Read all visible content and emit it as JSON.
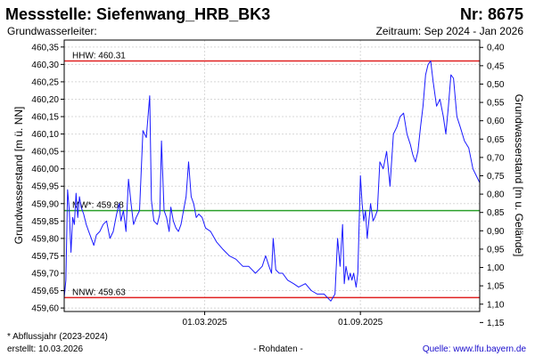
{
  "header": {
    "title": "Messstelle: Siefenwang_HRB_BK3",
    "number": "Nr: 8675",
    "aquifer": "Grundwasserleiter:",
    "period": "Zeitraum: Sep 2024 - Jan 2026"
  },
  "footer": {
    "note": "* Abflussjahr (2023-2024)",
    "created": "erstellt:  10.03.2026",
    "rawdata": "- Rohdaten -",
    "source": "Quelle: www.lfu.bayern.de"
  },
  "colors": {
    "series": "#1a1aff",
    "hhw": "#e02020",
    "nnw": "#e02020",
    "mw": "#2ca02c",
    "grid": "#d8d8d8",
    "source_link": "#1a0dcc"
  },
  "chart_data": {
    "type": "line",
    "title": "",
    "xlabel": "",
    "ylabel": "Grundwasserstand [m ü. NN]",
    "ylabel_right": "Grundwasserstand [m u. Gelände]",
    "xlim": [
      "2024-09-16",
      "2026-01-20"
    ],
    "ylim": [
      459.59,
      460.37
    ],
    "ylim_right": [
      1.12,
      0.38
    ],
    "x_ticks": [
      {
        "date": "2025-03-01",
        "label": "01.03.2025"
      },
      {
        "date": "2025-09-01",
        "label": "01.09.2025"
      }
    ],
    "y_ticks": [
      "460,35",
      "460,30",
      "460,25",
      "460,20",
      "460,15",
      "460,10",
      "460,05",
      "460,00",
      "459,95",
      "459,90",
      "459,85",
      "459,80",
      "459,75",
      "459,70",
      "459,65",
      "459,60"
    ],
    "y_tick_values": [
      460.35,
      460.3,
      460.25,
      460.2,
      460.15,
      460.1,
      460.05,
      460.0,
      459.95,
      459.9,
      459.85,
      459.8,
      459.75,
      459.7,
      459.65,
      459.6
    ],
    "y_right_ticks": [
      "0,40",
      "0,45",
      "0,50",
      "0,55",
      "0,60",
      "0,65",
      "0,70",
      "0,75",
      "0,80",
      "0,85",
      "0,90",
      "0,95",
      "1,00",
      "1,05",
      "1,10",
      "1,15"
    ],
    "y_right_tick_values": [
      0.4,
      0.45,
      0.5,
      0.55,
      0.6,
      0.65,
      0.7,
      0.75,
      0.8,
      0.85,
      0.9,
      0.95,
      1.0,
      1.05,
      1.1,
      1.15
    ],
    "grid": true,
    "reference_lines": [
      {
        "key": "hhw",
        "label": "HHW: 460.31",
        "value": 460.31
      },
      {
        "key": "mw",
        "label": "MW*: 459.88",
        "value": 459.88
      },
      {
        "key": "nnw",
        "label": "NNW: 459.63",
        "value": 459.63
      }
    ],
    "series": [
      {
        "x": [
          "2024-09-16",
          "2024-09-18",
          "2024-09-20",
          "2024-09-22",
          "2024-09-24",
          "2024-09-26",
          "2024-09-28",
          "2024-09-30",
          "2024-10-02",
          "2024-10-04",
          "2024-10-06",
          "2024-10-09",
          "2024-10-12",
          "2024-10-15",
          "2024-10-18",
          "2024-10-21",
          "2024-10-24",
          "2024-10-28",
          "2024-11-01",
          "2024-11-05",
          "2024-11-09",
          "2024-11-13",
          "2024-11-17",
          "2024-11-20",
          "2024-11-22",
          "2024-11-25",
          "2024-11-28",
          "2024-12-01",
          "2024-12-04",
          "2024-12-07",
          "2024-12-10",
          "2024-12-14",
          "2024-12-18",
          "2024-12-22",
          "2024-12-26",
          "2024-12-28",
          "2024-12-31",
          "2025-01-04",
          "2025-01-07",
          "2025-01-09",
          "2025-01-12",
          "2025-01-15",
          "2025-01-18",
          "2025-01-20",
          "2025-01-23",
          "2025-01-26",
          "2025-01-29",
          "2025-02-01",
          "2025-02-04",
          "2025-02-07",
          "2025-02-10",
          "2025-02-13",
          "2025-02-16",
          "2025-02-19",
          "2025-02-22",
          "2025-02-26",
          "2025-03-02",
          "2025-03-08",
          "2025-03-15",
          "2025-03-22",
          "2025-03-30",
          "2025-04-07",
          "2025-04-15",
          "2025-04-22",
          "2025-04-30",
          "2025-05-08",
          "2025-05-12",
          "2025-05-16",
          "2025-05-19",
          "2025-05-21",
          "2025-05-24",
          "2025-05-28",
          "2025-06-01",
          "2025-06-07",
          "2025-06-14",
          "2025-06-20",
          "2025-06-28",
          "2025-07-05",
          "2025-07-12",
          "2025-07-20",
          "2025-07-28",
          "2025-08-02",
          "2025-08-05",
          "2025-08-08",
          "2025-08-11",
          "2025-08-13",
          "2025-08-15",
          "2025-08-18",
          "2025-08-20",
          "2025-08-22",
          "2025-08-24",
          "2025-08-27",
          "2025-08-29",
          "2025-09-01",
          "2025-09-03",
          "2025-09-05",
          "2025-09-07",
          "2025-09-09",
          "2025-09-11",
          "2025-09-13",
          "2025-09-16",
          "2025-09-18",
          "2025-09-21",
          "2025-09-24",
          "2025-09-28",
          "2025-10-02",
          "2025-10-06",
          "2025-10-10",
          "2025-10-14",
          "2025-10-18",
          "2025-10-22",
          "2025-10-26",
          "2025-10-30",
          "2025-11-02",
          "2025-11-05",
          "2025-11-08",
          "2025-11-11",
          "2025-11-14",
          "2025-11-17",
          "2025-11-20",
          "2025-11-23",
          "2025-11-26",
          "2025-11-30",
          "2025-12-04",
          "2025-12-08",
          "2025-12-11",
          "2025-12-14",
          "2025-12-17",
          "2025-12-20",
          "2025-12-24",
          "2025-12-28",
          "2026-01-02",
          "2026-01-07",
          "2026-01-12",
          "2026-01-16",
          "2026-01-20"
        ],
        "values": [
          459.63,
          459.68,
          459.94,
          459.88,
          459.76,
          459.86,
          459.84,
          459.93,
          459.86,
          459.92,
          459.89,
          459.87,
          459.84,
          459.82,
          459.8,
          459.78,
          459.81,
          459.82,
          459.84,
          459.85,
          459.8,
          459.82,
          459.87,
          459.9,
          459.85,
          459.88,
          459.82,
          459.97,
          459.9,
          459.84,
          459.86,
          459.88,
          460.11,
          460.09,
          460.21,
          459.91,
          459.85,
          459.84,
          459.87,
          460.08,
          459.88,
          459.86,
          459.82,
          459.89,
          459.85,
          459.83,
          459.82,
          459.84,
          459.88,
          459.92,
          460.02,
          459.92,
          459.9,
          459.86,
          459.87,
          459.86,
          459.83,
          459.82,
          459.79,
          459.77,
          459.75,
          459.74,
          459.72,
          459.72,
          459.7,
          459.72,
          459.75,
          459.72,
          459.7,
          459.8,
          459.71,
          459.7,
          459.7,
          459.68,
          459.67,
          459.66,
          459.67,
          459.65,
          459.64,
          459.64,
          459.62,
          459.64,
          459.8,
          459.72,
          459.84,
          459.67,
          459.72,
          459.68,
          459.7,
          459.68,
          459.7,
          459.66,
          459.7,
          459.98,
          459.9,
          459.85,
          459.88,
          459.8,
          459.85,
          459.9,
          459.85,
          459.86,
          459.88,
          460.02,
          460.0,
          460.05,
          459.95,
          460.1,
          460.12,
          460.15,
          460.16,
          460.1,
          460.07,
          460.04,
          460.02,
          460.05,
          460.12,
          460.18,
          460.27,
          460.3,
          460.31,
          460.25,
          460.18,
          460.2,
          460.15,
          460.1,
          460.18,
          460.27,
          460.26,
          460.15,
          460.12,
          460.08,
          460.06,
          460.0,
          459.98,
          459.96
        ]
      }
    ]
  }
}
